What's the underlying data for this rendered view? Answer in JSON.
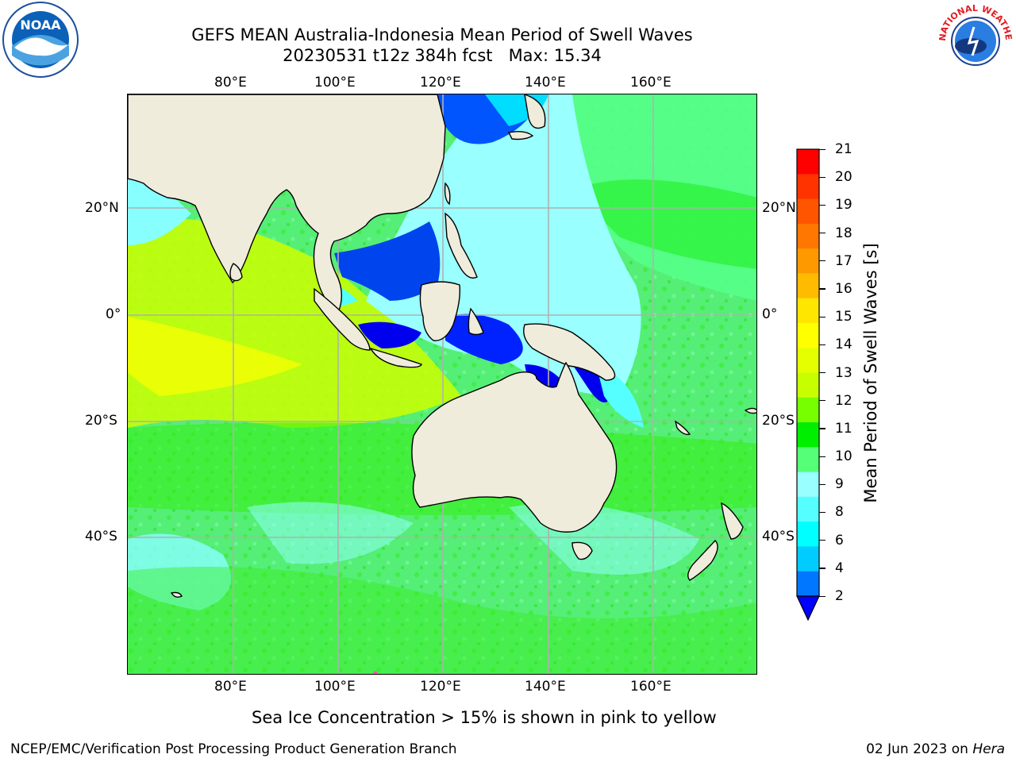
{
  "title": {
    "line1": "GEFS MEAN Australia-Indonesia Mean Period of Swell Waves",
    "line2": "20230531 t12z 384h fcst   Max: 15.34"
  },
  "axes": {
    "lon_top": [
      "80°E",
      "100°E",
      "120°E",
      "140°E",
      "160°E"
    ],
    "lon_bottom": [
      "80°E",
      "100°E",
      "120°E",
      "140°E",
      "160°E"
    ],
    "lat_left": [
      "20°N",
      "0°",
      "20°S",
      "40°S"
    ],
    "lat_right": [
      "20°N",
      "0°",
      "20°S",
      "40°S"
    ]
  },
  "colorbar": {
    "label": "Mean Period of Swell Waves [s]",
    "ticks": [
      "21",
      "20",
      "19",
      "18",
      "17",
      "16",
      "15",
      "14",
      "13",
      "12",
      "11",
      "10",
      "9",
      "8",
      "6",
      "4",
      "2"
    ],
    "colors_top_to_bottom": [
      "#ff0000",
      "#ff3300",
      "#ff5500",
      "#ff7700",
      "#ff9900",
      "#ffbb00",
      "#ffe600",
      "#ffff00",
      "#e6ff00",
      "#c8ff00",
      "#77ff00",
      "#00ee00",
      "#55ff77",
      "#99ffff",
      "#55ffff",
      "#00ffff",
      "#00ccff",
      "#0077ff",
      "#0000ff"
    ]
  },
  "note": "Sea Ice Concentration > 15% is shown in pink to yellow",
  "footer": {
    "left": "NCEP/EMC/Verification Post Processing Product Generation Branch",
    "right_prefix": "02 Jun 2023 on ",
    "right_host": "Hera"
  },
  "logos": {
    "noaa_text": "NOAA",
    "nws_text": "NATIONAL WEATHER SERVICE"
  },
  "map_colors": {
    "land": "#efecdc",
    "coast": "#000000",
    "grid": "#b0b0b0"
  }
}
